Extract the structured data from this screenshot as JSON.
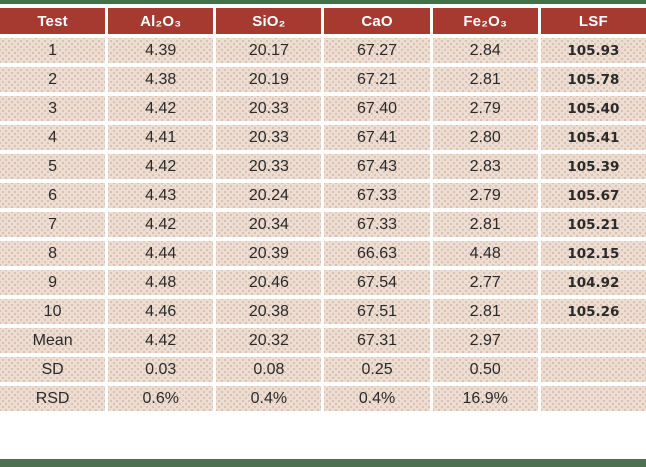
{
  "colors": {
    "header_bg": "#A63A30",
    "header_text": "#FFFFFF",
    "row_bg": "#EDDED4",
    "row_dot": "#D9C0B1",
    "gutter": "#FFFFFF",
    "accent_green_top": "#417146",
    "accent_green_bottom": "#4C7050",
    "body_text": "#2A2A2A"
  },
  "chart_data": {
    "type": "table",
    "title": "",
    "columns": [
      "Test",
      "Al₂O₃",
      "SiO₂",
      "CaO",
      "Fe₂O₃",
      "LSF"
    ],
    "rows": [
      [
        "1",
        "4.39",
        "20.17",
        "67.27",
        "2.84",
        "105.93"
      ],
      [
        "2",
        "4.38",
        "20.19",
        "67.21",
        "2.81",
        "105.78"
      ],
      [
        "3",
        "4.42",
        "20.33",
        "67.40",
        "2.79",
        "105.40"
      ],
      [
        "4",
        "4.41",
        "20.33",
        "67.41",
        "2.80",
        "105.41"
      ],
      [
        "5",
        "4.42",
        "20.33",
        "67.43",
        "2.83",
        "105.39"
      ],
      [
        "6",
        "4.43",
        "20.24",
        "67.33",
        "2.79",
        "105.67"
      ],
      [
        "7",
        "4.42",
        "20.34",
        "67.33",
        "2.81",
        "105.21"
      ],
      [
        "8",
        "4.44",
        "20.39",
        "66.63",
        "4.48",
        "102.15"
      ],
      [
        "9",
        "4.48",
        "20.46",
        "67.54",
        "2.77",
        "104.92"
      ],
      [
        "10",
        "4.46",
        "20.38",
        "67.51",
        "2.81",
        "105.26"
      ],
      [
        "Mean",
        "4.42",
        "20.32",
        "67.31",
        "2.97",
        ""
      ],
      [
        "SD",
        "0.03",
        "0.08",
        "0.25",
        "0.50",
        ""
      ],
      [
        "RSD",
        "0.6%",
        "0.4%",
        "0.4%",
        "16.9%",
        ""
      ]
    ]
  }
}
